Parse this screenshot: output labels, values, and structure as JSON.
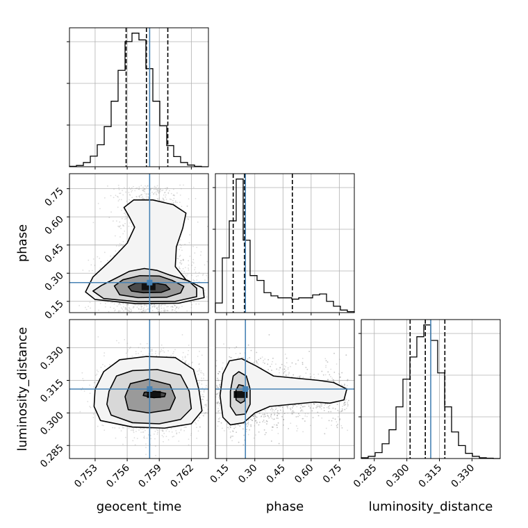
{
  "chart_data": {
    "type": "corner",
    "parameters": [
      "geocent_time",
      "phase",
      "luminosity_distance"
    ],
    "truths": {
      "geocent_time": 0.7581,
      "phase": 0.25,
      "luminosity_distance": 0.311
    },
    "quantiles": {
      "geocent_time": [
        0.7559,
        0.7578,
        0.7598
      ],
      "phase": [
        0.185,
        0.245,
        0.5
      ],
      "luminosity_distance": [
        0.3015,
        0.3085,
        0.3175
      ]
    },
    "ranges": {
      "geocent_time": [
        0.7506,
        0.7636
      ],
      "phase": [
        0.09,
        0.83
      ],
      "luminosity_distance": [
        0.279,
        0.343
      ]
    },
    "ticks": {
      "geocent_time": [
        "0.753",
        "0.756",
        "0.759",
        "0.762"
      ],
      "phase": [
        "0.15",
        "0.30",
        "0.45",
        "0.60",
        "0.75"
      ],
      "luminosity_distance": [
        "0.285",
        "0.300",
        "0.315",
        "0.330"
      ]
    },
    "histograms": {
      "geocent_time": {
        "bin_edges": [
          0.7506,
          0.75125,
          0.7519,
          0.75255,
          0.7532,
          0.75385,
          0.7545,
          0.75515,
          0.7558,
          0.75645,
          0.7571,
          0.75775,
          0.7584,
          0.75905,
          0.7597,
          0.76035,
          0.761,
          0.76165,
          0.7623,
          0.76295,
          0.7636
        ],
        "counts": [
          1,
          3,
          10,
          25,
          52,
          95,
          155,
          228,
          296,
          316,
          300,
          232,
          155,
          97,
          50,
          24,
          10,
          4,
          1,
          0
        ]
      },
      "phase": {
        "bin_edges": [
          0.09,
          0.127,
          0.164,
          0.201,
          0.238,
          0.275,
          0.312,
          0.349,
          0.386,
          0.423,
          0.46,
          0.497,
          0.534,
          0.571,
          0.608,
          0.645,
          0.682,
          0.719,
          0.756,
          0.793,
          0.83
        ],
        "counts": [
          30,
          170,
          285,
          415,
          225,
          115,
          100,
          62,
          52,
          46,
          46,
          42,
          46,
          46,
          55,
          58,
          35,
          20,
          8,
          3
        ]
      },
      "luminosity_distance": {
        "bin_edges": [
          0.279,
          0.2822,
          0.2854,
          0.2886,
          0.2918,
          0.295,
          0.2982,
          0.3014,
          0.3046,
          0.3078,
          0.311,
          0.3142,
          0.3174,
          0.3206,
          0.3238,
          0.327,
          0.3302,
          0.3334,
          0.3366,
          0.3398,
          0.343
        ],
        "counts": [
          2,
          6,
          16,
          40,
          78,
          140,
          215,
          275,
          330,
          362,
          320,
          232,
          140,
          72,
          35,
          14,
          6,
          2,
          1,
          0
        ]
      }
    },
    "contours": {
      "phase_vs_geocent_time": [
        [
          [
            0.7564,
            0.205
          ],
          [
            0.7575,
            0.196
          ],
          [
            0.7592,
            0.198
          ],
          [
            0.76,
            0.215
          ],
          [
            0.7596,
            0.238
          ],
          [
            0.7583,
            0.25
          ],
          [
            0.7568,
            0.247
          ],
          [
            0.7561,
            0.228
          ]
        ],
        [
          [
            0.7553,
            0.185
          ],
          [
            0.757,
            0.17
          ],
          [
            0.7597,
            0.172
          ],
          [
            0.761,
            0.195
          ],
          [
            0.7613,
            0.23
          ],
          [
            0.7602,
            0.262
          ],
          [
            0.759,
            0.285
          ],
          [
            0.7572,
            0.287
          ],
          [
            0.7556,
            0.265
          ],
          [
            0.7548,
            0.232
          ]
        ],
        [
          [
            0.7538,
            0.165
          ],
          [
            0.757,
            0.148
          ],
          [
            0.7605,
            0.15
          ],
          [
            0.7625,
            0.175
          ],
          [
            0.7625,
            0.22
          ],
          [
            0.7617,
            0.26
          ],
          [
            0.76,
            0.29
          ],
          [
            0.7588,
            0.315
          ],
          [
            0.7576,
            0.325
          ],
          [
            0.7562,
            0.31
          ],
          [
            0.755,
            0.275
          ],
          [
            0.7536,
            0.235
          ],
          [
            0.7528,
            0.205
          ]
        ],
        [
          [
            0.753,
            0.16
          ],
          [
            0.7568,
            0.138
          ],
          [
            0.7608,
            0.14
          ],
          [
            0.7632,
            0.17
          ],
          [
            0.7631,
            0.22
          ],
          [
            0.7615,
            0.265
          ],
          [
            0.7605,
            0.335
          ],
          [
            0.7606,
            0.44
          ],
          [
            0.7612,
            0.54
          ],
          [
            0.7615,
            0.62
          ],
          [
            0.7603,
            0.665
          ],
          [
            0.7584,
            0.69
          ],
          [
            0.7566,
            0.69
          ],
          [
            0.7557,
            0.65
          ],
          [
            0.7562,
            0.6
          ],
          [
            0.7567,
            0.545
          ],
          [
            0.756,
            0.46
          ],
          [
            0.7545,
            0.37
          ],
          [
            0.7528,
            0.28
          ],
          [
            0.7521,
            0.2
          ]
        ]
      ],
      "luminosity_distance_vs_geocent_time": [
        [
          [
            0.7575,
            0.308
          ],
          [
            0.7585,
            0.307
          ],
          [
            0.7595,
            0.3075
          ],
          [
            0.7596,
            0.309
          ],
          [
            0.7586,
            0.31
          ],
          [
            0.7576,
            0.3095
          ]
        ],
        [
          [
            0.7561,
            0.3015
          ],
          [
            0.758,
            0.3
          ],
          [
            0.76,
            0.3015
          ],
          [
            0.7605,
            0.307
          ],
          [
            0.76,
            0.313
          ],
          [
            0.758,
            0.3155
          ],
          [
            0.7563,
            0.3135
          ],
          [
            0.7558,
            0.3075
          ]
        ],
        [
          [
            0.7545,
            0.299
          ],
          [
            0.7565,
            0.2955
          ],
          [
            0.759,
            0.295
          ],
          [
            0.761,
            0.297
          ],
          [
            0.762,
            0.302
          ],
          [
            0.7618,
            0.31
          ],
          [
            0.761,
            0.3175
          ],
          [
            0.7588,
            0.32
          ],
          [
            0.7565,
            0.3195
          ],
          [
            0.755,
            0.317
          ],
          [
            0.7543,
            0.31
          ],
          [
            0.7541,
            0.304
          ]
        ],
        [
          [
            0.7535,
            0.2965
          ],
          [
            0.7565,
            0.2935
          ],
          [
            0.7595,
            0.293
          ],
          [
            0.762,
            0.295
          ],
          [
            0.763,
            0.301
          ],
          [
            0.7627,
            0.311
          ],
          [
            0.7622,
            0.32
          ],
          [
            0.7605,
            0.3255
          ],
          [
            0.7578,
            0.326
          ],
          [
            0.7553,
            0.3245
          ],
          [
            0.7538,
            0.319
          ],
          [
            0.753,
            0.311
          ],
          [
            0.7529,
            0.303
          ]
        ]
      ],
      "luminosity_distance_vs_phase": [
        [
          [
            0.2,
            0.306
          ],
          [
            0.225,
            0.3045
          ],
          [
            0.245,
            0.3055
          ],
          [
            0.25,
            0.309
          ],
          [
            0.24,
            0.3125
          ],
          [
            0.215,
            0.313
          ],
          [
            0.2,
            0.3105
          ]
        ],
        [
          [
            0.17,
            0.303
          ],
          [
            0.2,
            0.299
          ],
          [
            0.25,
            0.2995
          ],
          [
            0.275,
            0.304
          ],
          [
            0.275,
            0.311
          ],
          [
            0.255,
            0.317
          ],
          [
            0.215,
            0.319
          ],
          [
            0.185,
            0.317
          ],
          [
            0.17,
            0.31
          ]
        ],
        [
          [
            0.13,
            0.298
          ],
          [
            0.17,
            0.2945
          ],
          [
            0.24,
            0.2955
          ],
          [
            0.3,
            0.3
          ],
          [
            0.38,
            0.303
          ],
          [
            0.5,
            0.304
          ],
          [
            0.62,
            0.305
          ],
          [
            0.7,
            0.3045
          ],
          [
            0.775,
            0.306
          ],
          [
            0.79,
            0.311
          ],
          [
            0.72,
            0.314
          ],
          [
            0.64,
            0.315
          ],
          [
            0.52,
            0.316
          ],
          [
            0.4,
            0.317
          ],
          [
            0.31,
            0.3215
          ],
          [
            0.23,
            0.325
          ],
          [
            0.165,
            0.324
          ],
          [
            0.13,
            0.318
          ],
          [
            0.115,
            0.308
          ]
        ]
      ]
    },
    "density_peaks": {
      "phase_vs_geocent_time": [
        0.758,
        0.228
      ],
      "luminosity_distance_vs_geocent_time": [
        0.7585,
        0.3085
      ],
      "luminosity_distance_vs_phase": [
        0.225,
        0.3085
      ]
    },
    "colors": {
      "truth": "#4682b4",
      "line": "#000000",
      "grid": "#b0b0b0",
      "scatter": "#9a9a9a"
    },
    "grid": true
  }
}
